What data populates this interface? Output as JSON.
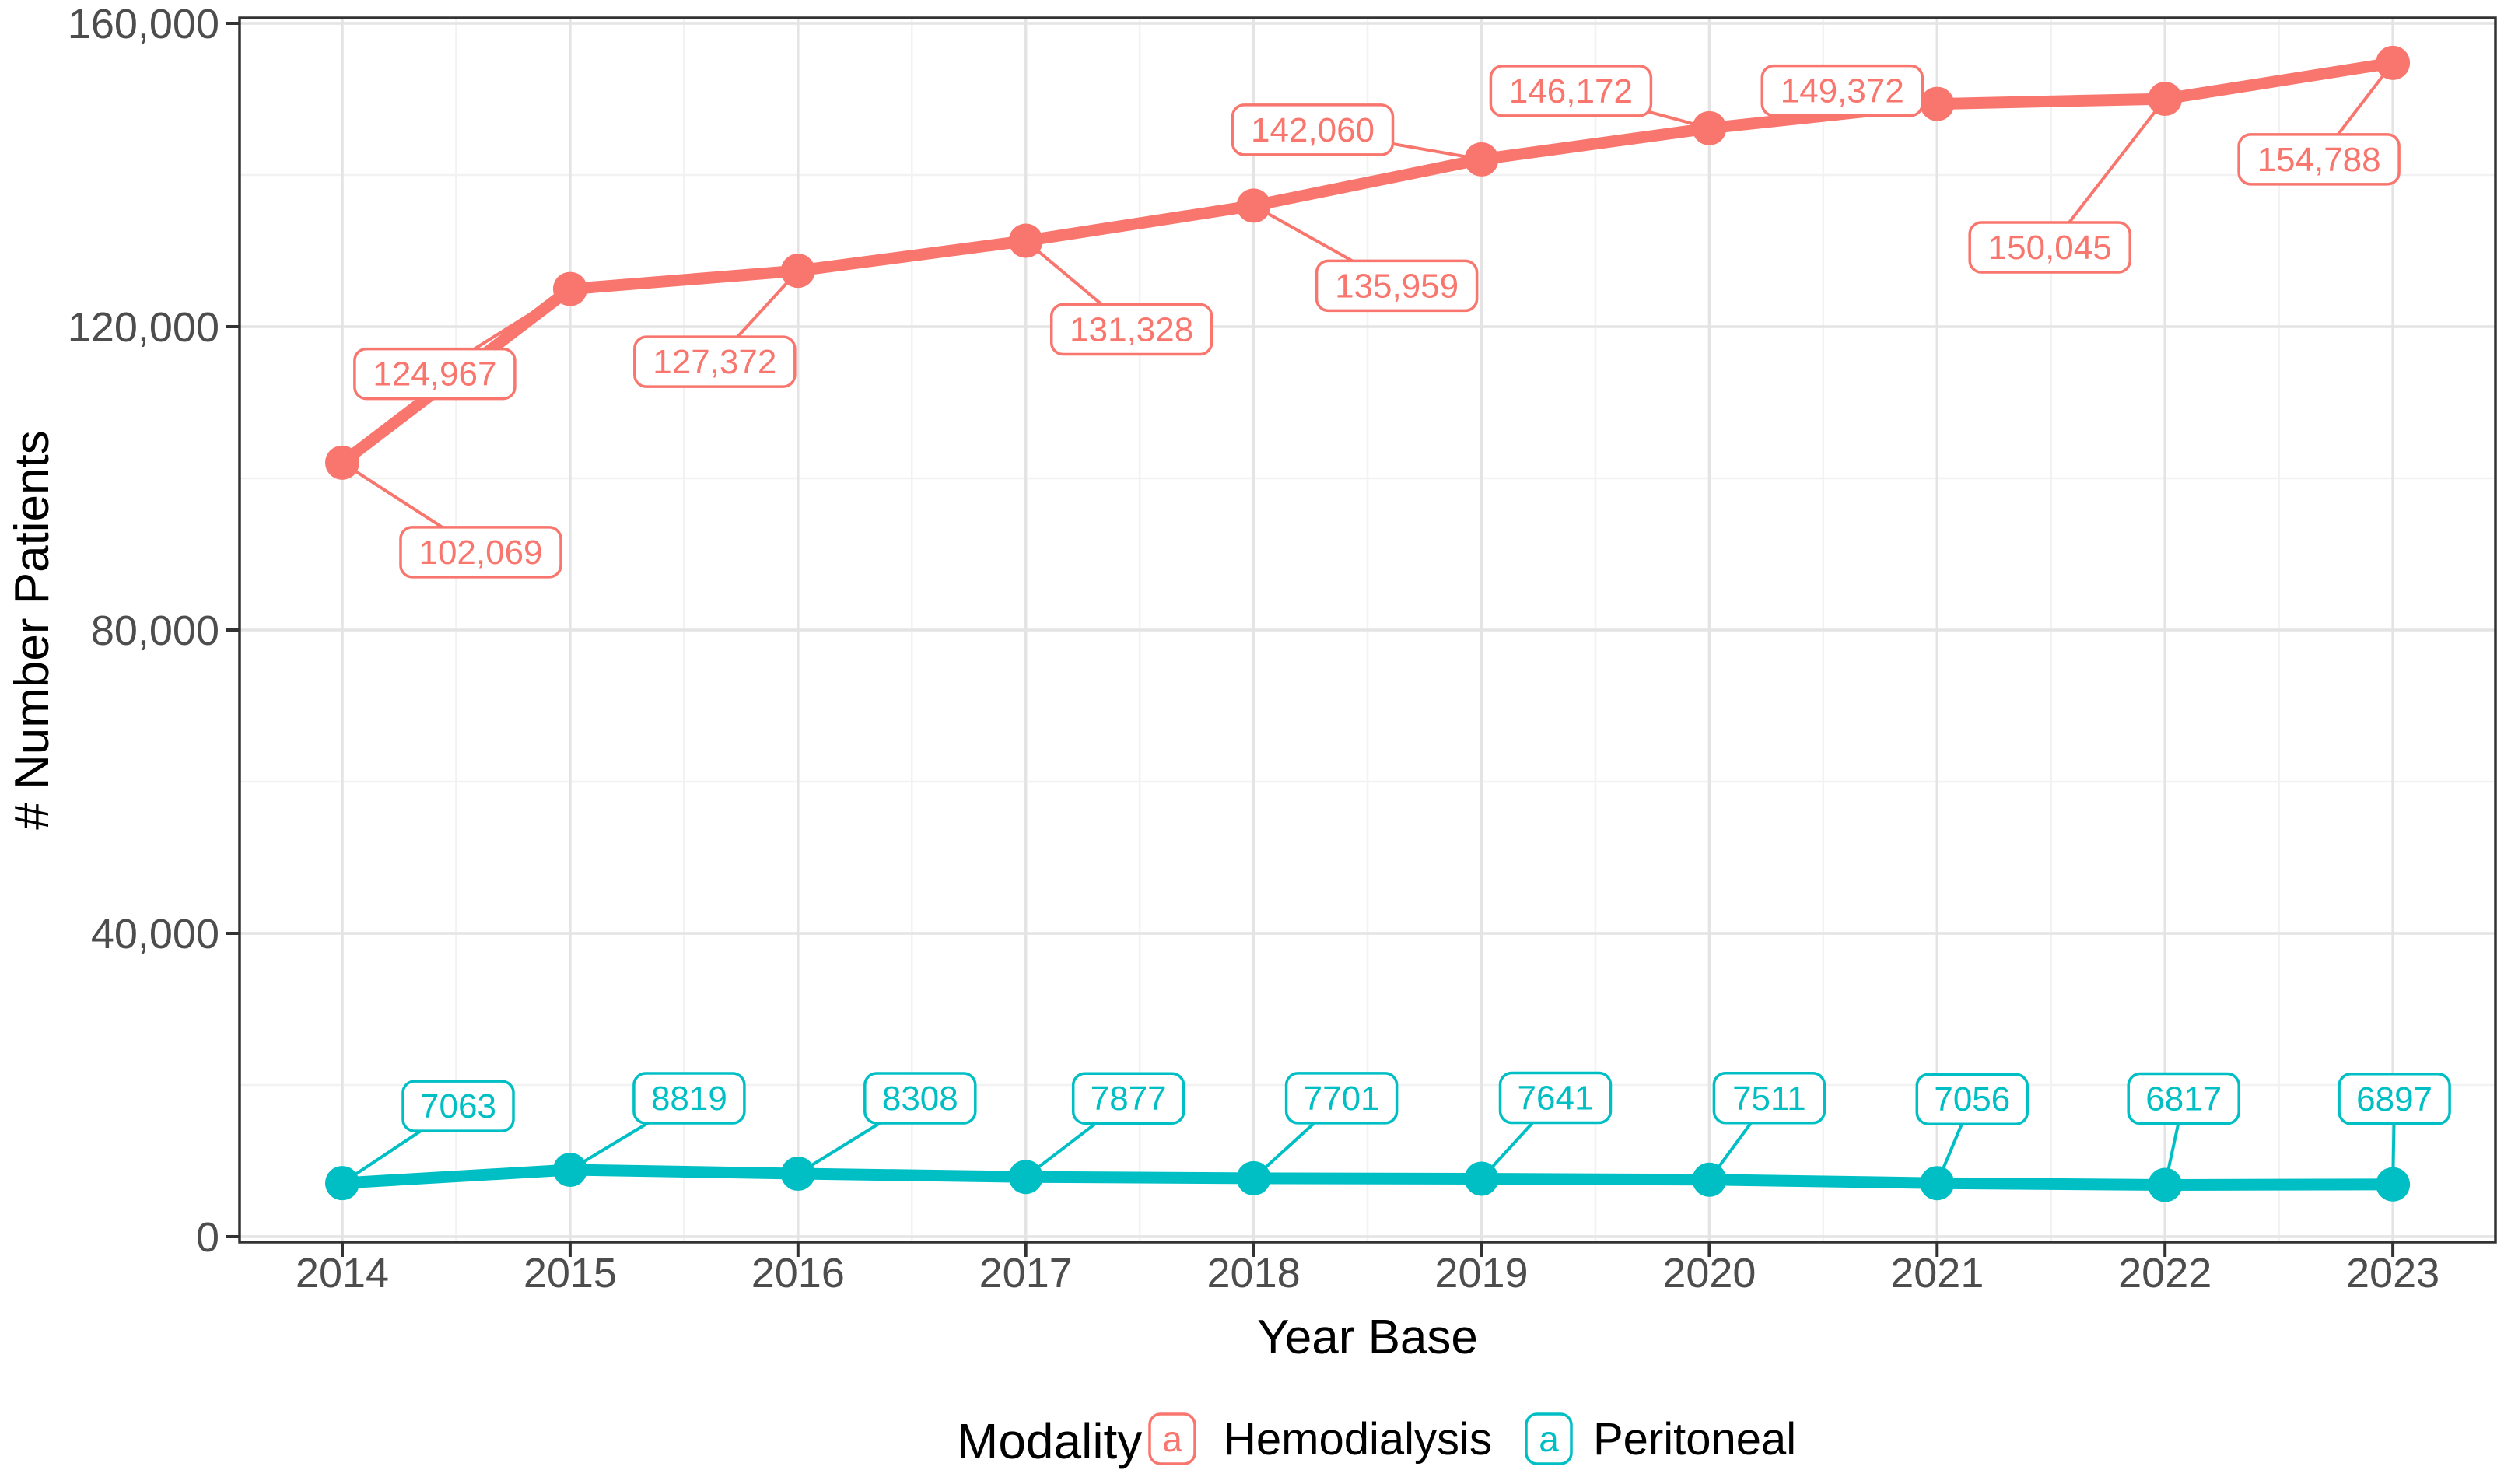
{
  "chart_data": {
    "type": "line",
    "title": "",
    "xlabel": "Year Base",
    "ylabel": "# Number Patients",
    "x": [
      2014,
      2015,
      2016,
      2017,
      2018,
      2019,
      2020,
      2021,
      2022,
      2023
    ],
    "x_tick_labels": [
      "2014",
      "2015",
      "2016",
      "2017",
      "2018",
      "2019",
      "2020",
      "2021",
      "2022",
      "2023"
    ],
    "y_ticks": [
      0,
      40000,
      80000,
      120000,
      160000
    ],
    "y_tick_labels": [
      "0",
      "40,000",
      "80,000",
      "120,000",
      "160,000"
    ],
    "ylim": [
      0,
      160000
    ],
    "grid": {
      "major": true,
      "minor": true
    },
    "legend_position": "bottom",
    "series": [
      {
        "name": "Hemodialysis",
        "color": "#F8766D",
        "values": [
          102069,
          124967,
          127372,
          131328,
          135959,
          142060,
          146172,
          149372,
          150045,
          154788
        ],
        "labels": [
          "102,069",
          "124,967",
          "127,372",
          "131,328",
          "135,959",
          "142,060",
          "146,172",
          "149,372",
          "150,045",
          "154,788"
        ],
        "label_offsets": [
          [
            178,
            115
          ],
          [
            -174,
            109
          ],
          [
            -107,
            117
          ],
          [
            136,
            114
          ],
          [
            184,
            103
          ],
          [
            -217,
            -38
          ],
          [
            -178,
            -48
          ],
          [
            -122,
            -17
          ],
          [
            -148,
            191
          ],
          [
            -95,
            124
          ]
        ]
      },
      {
        "name": "Peritoneal",
        "color": "#00BFC4",
        "values": [
          7063,
          8819,
          8308,
          7877,
          7701,
          7641,
          7511,
          7056,
          6817,
          6897
        ],
        "labels": [
          "7063",
          "8819",
          "8308",
          "7877",
          "7701",
          "7641",
          "7511",
          "7056",
          "6817",
          "6897"
        ],
        "label_offsets": [
          [
            149,
            -99
          ],
          [
            153,
            -92
          ],
          [
            157,
            -97
          ],
          [
            132,
            -101
          ],
          [
            113,
            -103
          ],
          [
            95,
            -104
          ],
          [
            77,
            -105
          ],
          [
            45,
            -108
          ],
          [
            24,
            -111
          ],
          [
            2,
            -110
          ]
        ]
      }
    ]
  },
  "legend": {
    "title": "Modality",
    "key_letter": "a",
    "items": [
      {
        "label": "Hemodialysis",
        "color": "#F8766D"
      },
      {
        "label": "Peritoneal",
        "color": "#00BFC4"
      }
    ]
  },
  "colors": {
    "hemodialysis": "#F8766D",
    "peritoneal": "#00BFC4",
    "tick_label": "#4D4D4D",
    "axis_title": "#000000",
    "panel_border": "#333333",
    "tick_mark": "#333333",
    "grid_major": "#E4E4E4",
    "grid_minor": "#F2F2F2",
    "label_box_fill": "#FFFFFF",
    "background": "#FFFFFF"
  }
}
